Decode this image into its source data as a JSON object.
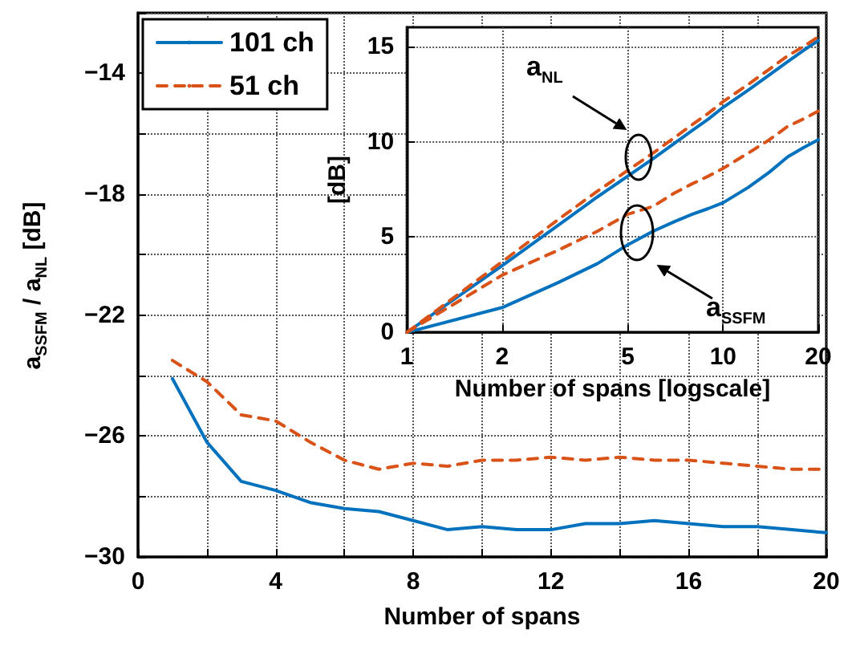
{
  "chart_data": [
    {
      "type": "line",
      "xlabel": "Number of spans",
      "ylabel": "a$_{SSFM}$ / a$_{NL}$  [dB]",
      "x": [
        1,
        2,
        3,
        4,
        5,
        6,
        7,
        8,
        9,
        10,
        11,
        12,
        13,
        14,
        15,
        16,
        17,
        18,
        19,
        20
      ],
      "series": [
        {
          "name": "101 ch",
          "color": "#0072bd",
          "line_style": "solid",
          "values": [
            -24.1,
            -26.2,
            -27.5,
            -27.8,
            -28.2,
            -28.4,
            -28.5,
            -28.8,
            -29.1,
            -29.0,
            -29.1,
            -29.1,
            -28.9,
            -28.9,
            -28.8,
            -28.9,
            -29.0,
            -29.0,
            -29.1,
            -29.2
          ]
        },
        {
          "name": "51 ch",
          "color": "#d95319",
          "line_style": "dashed",
          "values": [
            -23.5,
            -24.2,
            -25.3,
            -25.5,
            -26.2,
            -26.8,
            -27.1,
            -26.9,
            -27.0,
            -26.8,
            -26.8,
            -26.7,
            -26.8,
            -26.7,
            -26.8,
            -26.8,
            -26.9,
            -27.0,
            -27.1,
            -27.1
          ]
        }
      ],
      "xlim": [
        0,
        20
      ],
      "xticks": [
        0,
        {
          "value": 2,
          "label": null
        },
        4,
        {
          "value": 6,
          "label": null
        },
        8,
        {
          "value": 10,
          "label": null
        },
        12,
        {
          "value": 14,
          "label": null
        },
        16,
        {
          "value": 18,
          "label": null
        },
        20
      ],
      "ylim": [
        -30,
        -12
      ],
      "yticks": [
        {
          "value": -30,
          "label": "−30"
        },
        {
          "value": -28,
          "label": null
        },
        {
          "value": -26,
          "label": "−26"
        },
        {
          "value": -24,
          "label": null
        },
        {
          "value": -22,
          "label": "−22"
        },
        {
          "value": -20,
          "label": null
        },
        {
          "value": -18,
          "label": "−18"
        },
        {
          "value": -16,
          "label": null
        },
        {
          "value": -14,
          "label": "−14"
        },
        {
          "value": -12,
          "label": null
        }
      ],
      "grid": true,
      "legend": "top left",
      "marker": "none"
    },
    {
      "type": "line",
      "xlabel": "Number of spans [logscale]",
      "ylabel": "[dB]",
      "annotations": [
        "a$_{NL}$",
        "a$_{SSFM}$"
      ],
      "x": [
        1,
        2,
        3,
        4,
        5,
        6,
        7,
        8,
        9,
        10,
        12,
        14,
        16,
        18,
        20
      ],
      "series": [
        {
          "color": "#0072bd",
          "line_style": "solid",
          "values": [
            0,
            3.5,
            5.6,
            7.1,
            8.2,
            9.1,
            9.9,
            10.6,
            11.2,
            11.8,
            12.7,
            13.5,
            14.2,
            14.8,
            15.3
          ]
        },
        {
          "color": "#d95319",
          "line_style": "dashed",
          "values": [
            0,
            3.7,
            5.9,
            7.4,
            8.5,
            9.4,
            10.2,
            10.9,
            11.5,
            12.1,
            13.0,
            13.8,
            14.5,
            15.0,
            15.5
          ]
        },
        {
          "color": "#0072bd",
          "line_style": "solid",
          "values": [
            0,
            1.3,
            2.6,
            3.6,
            4.6,
            5.3,
            5.8,
            6.2,
            6.5,
            6.8,
            7.6,
            8.4,
            9.2,
            9.7,
            10.1
          ]
        },
        {
          "color": "#d95319",
          "line_style": "dashed",
          "values": [
            0,
            3.0,
            4.3,
            5.3,
            6.2,
            6.6,
            7.3,
            7.8,
            8.2,
            8.6,
            9.4,
            10.1,
            10.8,
            11.2,
            11.6
          ]
        }
      ],
      "log": "x",
      "xlim": [
        1,
        20
      ],
      "xticks": [
        1,
        2,
        5,
        10,
        20
      ],
      "ylim": [
        0,
        16
      ],
      "yticks": [
        0,
        5,
        10,
        15
      ],
      "grid": true,
      "marker": "none"
    }
  ]
}
